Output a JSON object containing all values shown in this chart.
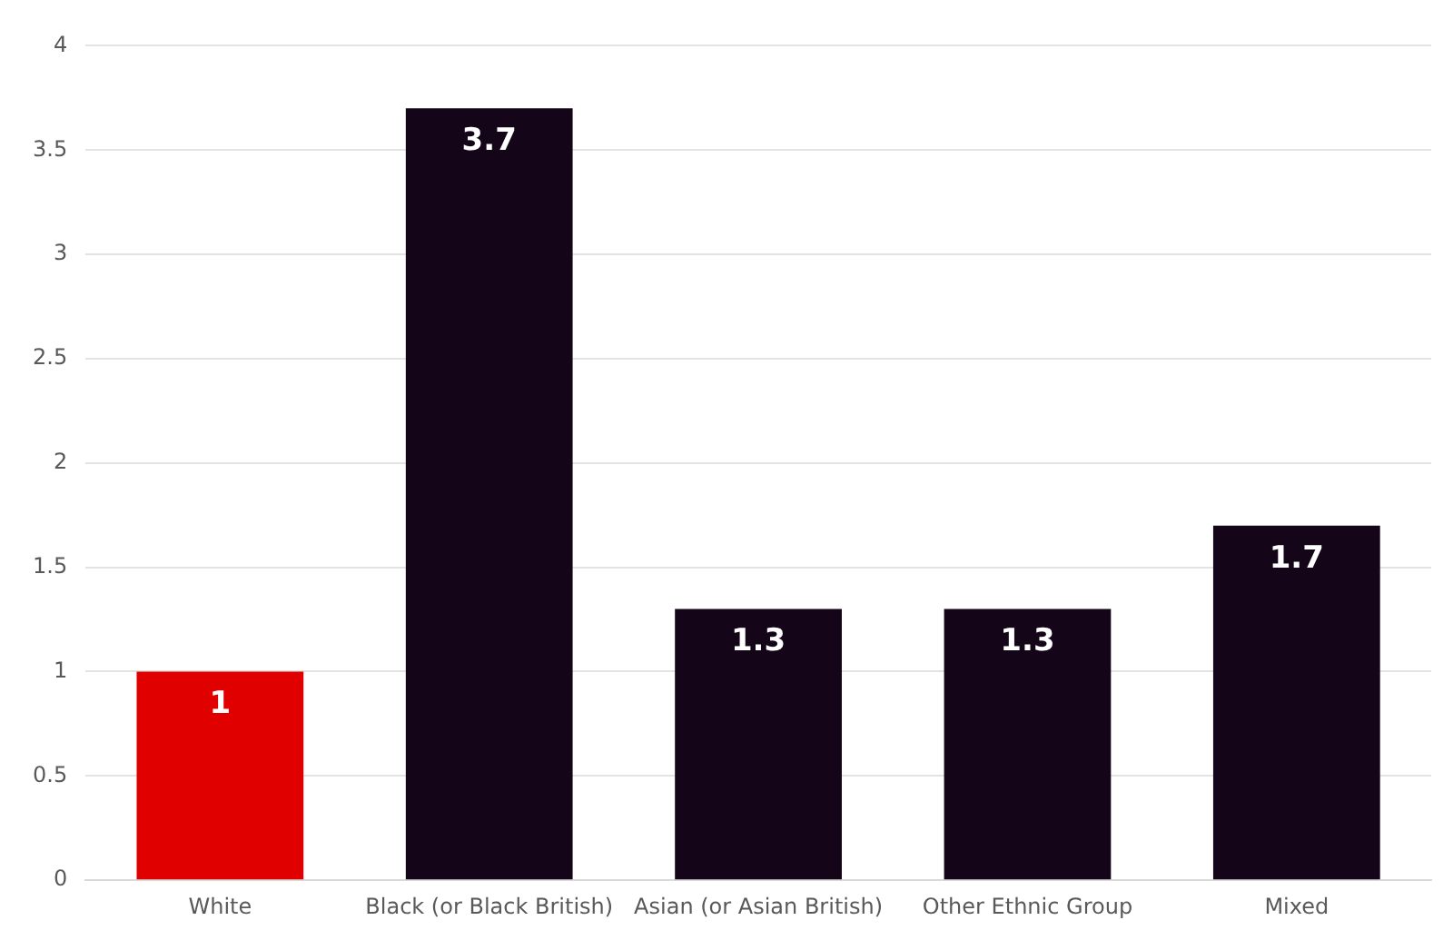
{
  "chart_data": {
    "type": "bar",
    "categories": [
      "White",
      "Black (or Black British)",
      "Asian (or Asian British)",
      "Other Ethnic Group",
      "Mixed"
    ],
    "values": [
      1,
      3.7,
      1.3,
      1.3,
      1.7
    ],
    "colors": [
      "#e10000",
      "#140618",
      "#140618",
      "#140618",
      "#140618"
    ],
    "ylim": [
      0,
      4
    ],
    "yticks": [
      0,
      0.5,
      1,
      1.5,
      2,
      2.5,
      3,
      3.5,
      4
    ],
    "grid": "y",
    "data_labels": true,
    "legend": false
  }
}
